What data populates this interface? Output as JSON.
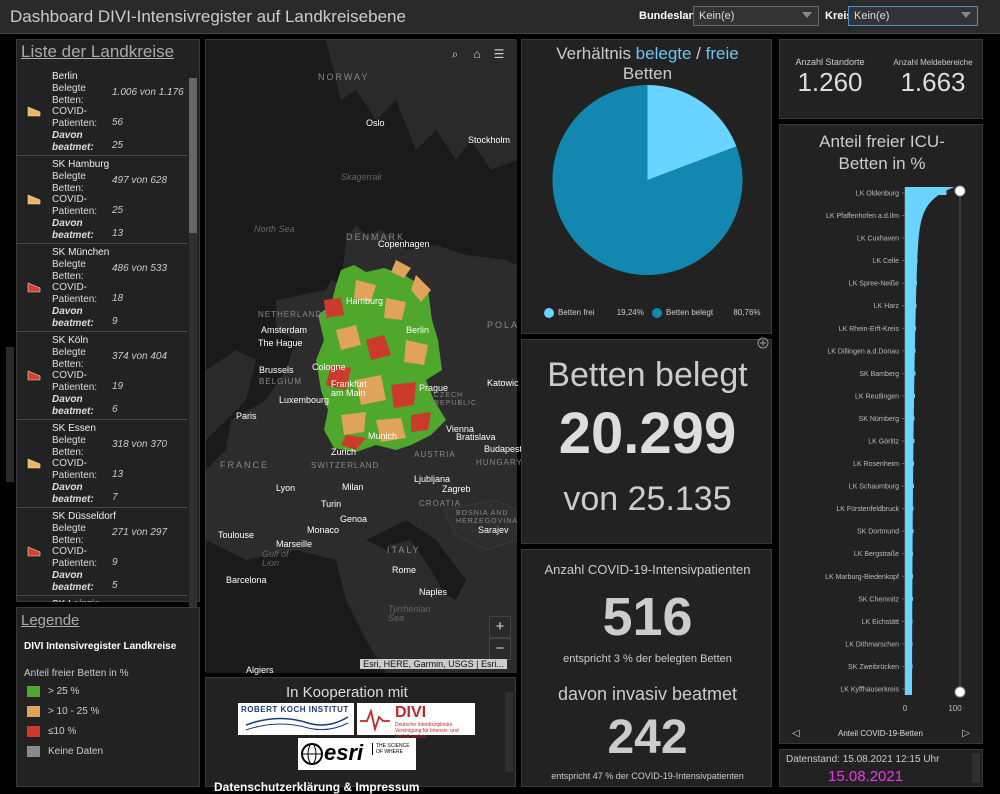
{
  "header": {
    "title": "Dashboard DIVI-Intensivregister auf Landkreisebene",
    "bundesland_label": "Bundesland",
    "bundesland_value": "Kein(e)",
    "kreis_label": "Kreis",
    "kreis_value": "Kein(e)"
  },
  "list": {
    "title": "Liste der Landkreise",
    "labels": {
      "belegt": "Belegte Betten:",
      "covid": "COVID-Patienten:",
      "beatmet": "Davon beatmet:"
    },
    "items": [
      {
        "name": "Berlin",
        "belegt": "1.006 von 1.176",
        "covid": "56",
        "beatmet": "25",
        "color": "#f0b55a"
      },
      {
        "name": "SK Hamburg",
        "belegt": "497 von 628",
        "covid": "25",
        "beatmet": "13",
        "color": "#f0b55a"
      },
      {
        "name": "SK München",
        "belegt": "486 von 533",
        "covid": "18",
        "beatmet": "9",
        "color": "#d9402c"
      },
      {
        "name": "SK Köln",
        "belegt": "374 von 404",
        "covid": "19",
        "beatmet": "6",
        "color": "#d9402c"
      },
      {
        "name": "SK Essen",
        "belegt": "318 von 370",
        "covid": "13",
        "beatmet": "7",
        "color": "#f0b55a"
      },
      {
        "name": "SK Düsseldorf",
        "belegt": "271 von 297",
        "covid": "9",
        "beatmet": "5",
        "color": "#d9402c"
      },
      {
        "name": "SK Leipzig",
        "belegt": "",
        "covid": "",
        "beatmet": "",
        "color": "#f0b55a"
      }
    ]
  },
  "legend": {
    "title": "Legende",
    "layer": "DIVI Intensivregister Landkreise",
    "field": "Anteil freier Betten in %",
    "items": [
      {
        "label": "> 25 %",
        "color": "#4fa72c"
      },
      {
        "label": "> 10 - 25 %",
        "color": "#e0a35b"
      },
      {
        "label": "≤10 %",
        "color": "#cc3a2c"
      },
      {
        "label": "Keine Daten",
        "color": "#8a8a8a"
      }
    ]
  },
  "map": {
    "attribution": "Esri, HERE, Garmin, USGS | Esri...",
    "zoom_in": "+",
    "zoom_out": "−",
    "labels": {
      "norway": "NORWAY",
      "oslo": "Oslo",
      "stockholm": "Stockholm",
      "skagerrak": "Skagerrak",
      "north_sea": "North Sea",
      "denmark": "DENMARK",
      "copenhagen": "Copenhagen",
      "hamburg": "Hamburg",
      "netherlands": "NETHERLANDS",
      "amsterdam": "Amsterdam",
      "the_hague": "The Hague",
      "berlin": "Berlin",
      "pola": "POLA",
      "brussels": "Brussels",
      "belgium": "BELGIUM",
      "cologne": "Cologne",
      "frankfurt": "Frankfurt am Main",
      "prague": "Prague",
      "czech": "CZECH REPUBLIC",
      "katowice": "Katowic",
      "luxembourg": "Luxembourg",
      "paris": "Paris",
      "munich": "Munich",
      "vienna": "Vienna",
      "bratislava": "Bratislava",
      "budapest": "Budapest",
      "france": "FRANCE",
      "zurich": "Zurich",
      "switzerland": "SWITZERLAND",
      "austria": "AUSTRIA",
      "hungary": "HUNGARY",
      "lyon": "Lyon",
      "milan": "Milan",
      "ljubljana": "Ljubljana",
      "zagreb": "Zagreb",
      "croatia": "CROATIA",
      "turin": "Turin",
      "bosnia": "BOSNIA AND HERZEGOVINA",
      "sarajevo": "Sarajev",
      "genoa": "Genoa",
      "toulouse": "Toulouse",
      "monaco": "Monaco",
      "marseille": "Marseille",
      "italy": "ITALY",
      "rome": "Rome",
      "barcelona": "Barcelona",
      "naples": "Naples",
      "tyrrhenian": "Tyrrhenian Sea",
      "algiers": "Algiers",
      "gulf_lion": "Gulf of Lion"
    }
  },
  "cooperation": {
    "title": "In Kooperation mit",
    "rki": "ROBERT KOCH INSTITUT",
    "divi": "DIVI",
    "divi_sub": "Deutsche Interdisziplinäre Vereinigung für Intensiv- und Notfallmedizin",
    "esri": "esri",
    "esri_tag": "THE SCIENCE OF WHERE",
    "impressum": "Datenschutzerklärung & Impressum"
  },
  "pie": {
    "title_prefix": "Verhältnis ",
    "title_belegte": "belegte",
    "title_sep": " / ",
    "title_freie": "freie",
    "title_line2": "Betten",
    "free_label": "Betten frei",
    "free_pct": "19,24%",
    "occupied_label": "Betten belegt",
    "occupied_pct": "80,76%",
    "free_color": "#69d4ff",
    "occupied_color": "#1288b0"
  },
  "beds": {
    "label": "Betten belegt",
    "value": "20.299",
    "sub": "von 25.135"
  },
  "covid": {
    "title": "Anzahl COVID-19-Intensivpatienten",
    "value": "516",
    "sub": "entspricht 3 % der belegten Betten",
    "vent_title": "davon invasiv beatmet",
    "vent_value": "242",
    "vent_sub": "entspricht 47 % der COVID-19-Intensivpatienten"
  },
  "counts": {
    "standorte_label": "Anzahl Standorte",
    "standorte_value": "1.260",
    "melde_label": "Anzahl Meldebereiche",
    "melde_value": "1.663"
  },
  "bar": {
    "title_line1": "Anteil freier ICU-",
    "title_line2": "Betten in %",
    "x_label": "Anteil COVID-19-Betten",
    "tick0": "0",
    "tick100": "100"
  },
  "chart_data": {
    "type": "bar",
    "orientation": "horizontal",
    "title": "Anteil freier ICU-Betten in %",
    "xlabel": "Anteil COVID-19-Betten",
    "xlim": [
      0,
      100
    ],
    "categories": [
      "LK Oldenburg",
      "LK Pfaffenhofen a.d.Ilm",
      "LK Cuxhaven",
      "LK Celle",
      "LK Spree-Neiße",
      "LK Harz",
      "LK Rhein-Erft-Kreis",
      "LK Dillingen a.d.Donau",
      "SK Bamberg",
      "LK Reutlingen",
      "SK Nürnberg",
      "LK Görlitz",
      "LK Rosenheim",
      "LK Schaumburg",
      "LK Fürstenfeldbruck",
      "SK Dortmund",
      "LK Bergstraße",
      "LK Marburg-Biedenkopf",
      "SK Chemnitz",
      "LK Eichstätt",
      "LK Dithmarschen",
      "SK Zweibrücken",
      "LK Kyffhäuserkreis"
    ],
    "values": [
      83,
      30,
      27,
      25,
      24,
      23,
      22,
      21,
      21,
      20,
      19,
      19,
      18,
      18,
      17,
      17,
      16,
      16,
      16,
      15,
      15,
      15,
      14
    ],
    "bar_color": "#69d4ff"
  },
  "date": {
    "label": "Datenstand: 15.08.2021 12:15 Uhr",
    "value": "15.08.2021"
  }
}
